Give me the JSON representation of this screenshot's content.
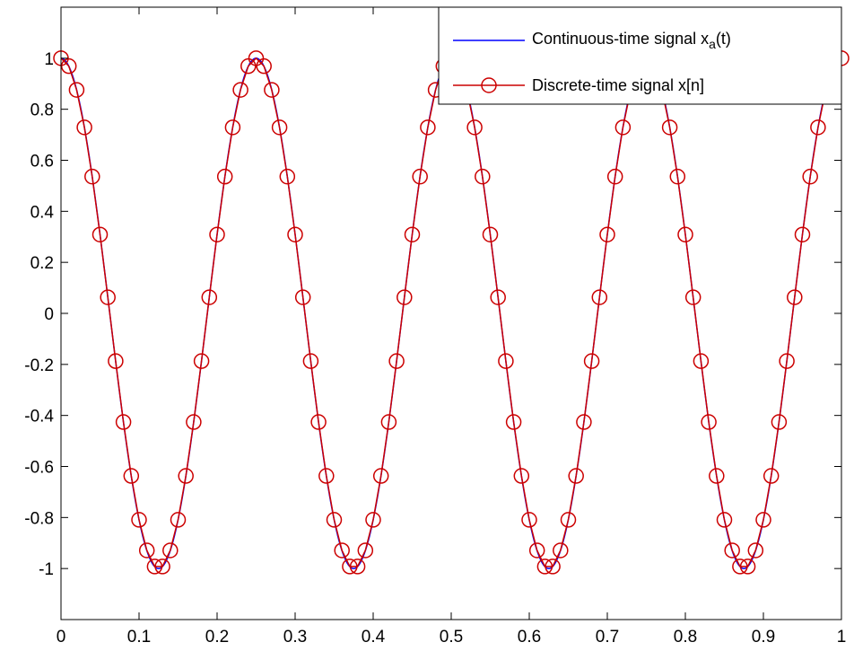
{
  "chart_data": {
    "type": "line",
    "title": "",
    "xlabel": "",
    "ylabel": "",
    "xlim": [
      0,
      1
    ],
    "ylim": [
      -1.2,
      1.2
    ],
    "grid": false,
    "legend_position": "top-right",
    "x_ticks": [
      "0",
      "0.1",
      "0.2",
      "0.3",
      "0.4",
      "0.5",
      "0.6",
      "0.7",
      "0.8",
      "0.9",
      "1"
    ],
    "y_ticks": [
      "1",
      "0.8",
      "0.6",
      "0.4",
      "0.2",
      "0",
      "-0.2",
      "-0.4",
      "-0.6",
      "-0.8",
      "-1"
    ],
    "series": [
      {
        "name": "Continuous-time signal x",
        "name_subscript": "a",
        "name_suffix": "(t)",
        "kind": "line",
        "color": "#0000ff",
        "expression": "cos(8*pi*t)",
        "x_range": [
          0,
          1
        ],
        "frequency_hz": 4
      },
      {
        "name": "Discrete-time signal x[n]",
        "kind": "line-with-circle-markers",
        "color": "#cc0000",
        "marker": "circle",
        "sample_step": 0.01,
        "x": [
          0,
          0.01,
          0.02,
          0.03,
          0.04,
          0.05,
          0.06,
          0.07,
          0.08,
          0.09,
          0.1,
          0.11,
          0.12,
          0.13,
          0.14,
          0.15,
          0.16,
          0.17,
          0.18,
          0.19,
          0.2,
          0.21,
          0.22,
          0.23,
          0.24,
          0.25,
          0.26,
          0.27,
          0.28,
          0.29,
          0.3,
          0.31,
          0.32,
          0.33,
          0.34,
          0.35,
          0.36,
          0.37,
          0.38,
          0.39,
          0.4,
          0.41,
          0.42,
          0.43,
          0.44,
          0.45,
          0.46,
          0.47,
          0.48,
          0.49,
          0.5,
          0.51,
          0.52,
          0.53,
          0.54,
          0.55,
          0.56,
          0.57,
          0.58,
          0.59,
          0.6,
          0.61,
          0.62,
          0.63,
          0.64,
          0.65,
          0.66,
          0.67,
          0.68,
          0.69,
          0.7,
          0.71,
          0.72,
          0.73,
          0.74,
          0.75,
          0.76,
          0.77,
          0.78,
          0.79,
          0.8,
          0.81,
          0.82,
          0.83,
          0.84,
          0.85,
          0.86,
          0.87,
          0.88,
          0.89,
          0.9,
          0.91,
          0.92,
          0.93,
          0.94,
          0.95,
          0.96,
          0.97,
          0.98,
          0.99,
          1
        ],
        "y": [
          1,
          0.969,
          0.876,
          0.729,
          0.536,
          0.309,
          0.063,
          -0.187,
          -0.426,
          -0.637,
          -0.809,
          -0.929,
          -0.992,
          -0.992,
          -0.929,
          -0.809,
          -0.637,
          -0.426,
          -0.187,
          0.063,
          0.309,
          0.536,
          0.729,
          0.876,
          0.969,
          1,
          0.969,
          0.876,
          0.729,
          0.536,
          0.309,
          0.063,
          -0.187,
          -0.426,
          -0.637,
          -0.809,
          -0.929,
          -0.992,
          -0.992,
          -0.929,
          -0.809,
          -0.637,
          -0.426,
          -0.187,
          0.063,
          0.309,
          0.536,
          0.729,
          0.876,
          0.969,
          1,
          0.969,
          0.876,
          0.729,
          0.536,
          0.309,
          0.063,
          -0.187,
          -0.426,
          -0.637,
          -0.809,
          -0.929,
          -0.992,
          -0.992,
          -0.929,
          -0.809,
          -0.637,
          -0.426,
          -0.187,
          0.063,
          0.309,
          0.536,
          0.729,
          0.876,
          0.969,
          1,
          0.969,
          0.876,
          0.729,
          0.536,
          0.309,
          0.063,
          -0.187,
          -0.426,
          -0.637,
          -0.809,
          -0.929,
          -0.992,
          -0.992,
          -0.929,
          -0.809,
          -0.637,
          -0.426,
          -0.187,
          0.063,
          0.309,
          0.536,
          0.729,
          0.876,
          0.969,
          1
        ]
      }
    ]
  }
}
